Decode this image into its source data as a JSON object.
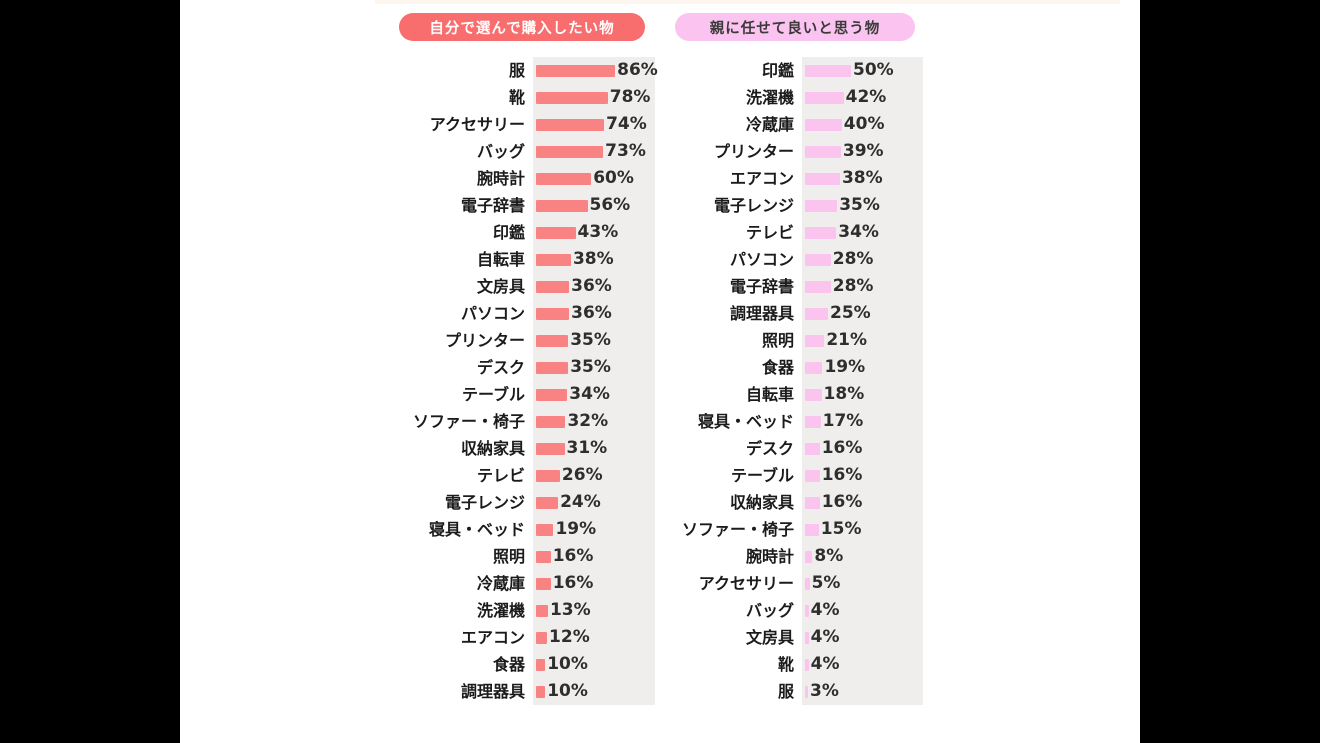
{
  "legend": {
    "self_label": "自分で選んで購入したい物",
    "parents_label": "親に任せて良いと思う物"
  },
  "colors": {
    "self_pill": "#f86e6e",
    "self_bar": "#f98383",
    "parents_pill": "#fbc3f0",
    "parents_bar": "#fac4ef",
    "panel_background": "#efeeec",
    "letterbox": "#000000",
    "canvas": "#ffffff"
  },
  "chart_data": [
    {
      "type": "bar",
      "orientation": "horizontal",
      "title": "自分で選んで購入したい物",
      "unit": "%",
      "xlim": [
        0,
        100
      ],
      "grid": false,
      "legend_position": "top",
      "bar_color": "#f98383",
      "categories": [
        "服",
        "靴",
        "アクセサリー",
        "バッグ",
        "腕時計",
        "電子辞書",
        "印鑑",
        "自転車",
        "文房具",
        "パソコン",
        "プリンター",
        "デスク",
        "テーブル",
        "ソファー・椅子",
        "収納家具",
        "テレビ",
        "電子レンジ",
        "寝具・ベッド",
        "照明",
        "冷蔵庫",
        "洗濯機",
        "エアコン",
        "食器",
        "調理器具"
      ],
      "values": [
        86,
        78,
        74,
        73,
        60,
        56,
        43,
        38,
        36,
        36,
        35,
        35,
        34,
        32,
        31,
        26,
        24,
        19,
        16,
        16,
        13,
        12,
        10,
        10
      ]
    },
    {
      "type": "bar",
      "orientation": "horizontal",
      "title": "親に任せて良いと思う物",
      "unit": "%",
      "xlim": [
        0,
        100
      ],
      "grid": false,
      "legend_position": "top",
      "bar_color": "#fac4ef",
      "categories": [
        "印鑑",
        "洗濯機",
        "冷蔵庫",
        "プリンター",
        "エアコン",
        "電子レンジ",
        "テレビ",
        "パソコン",
        "電子辞書",
        "調理器具",
        "照明",
        "食器",
        "自転車",
        "寝具・ベッド",
        "デスク",
        "テーブル",
        "収納家具",
        "ソファー・椅子",
        "腕時計",
        "アクセサリー",
        "バッグ",
        "文房具",
        "靴",
        "服"
      ],
      "values": [
        50,
        42,
        40,
        39,
        38,
        35,
        34,
        28,
        28,
        25,
        21,
        19,
        18,
        17,
        16,
        16,
        16,
        15,
        8,
        5,
        4,
        4,
        4,
        3
      ]
    }
  ]
}
